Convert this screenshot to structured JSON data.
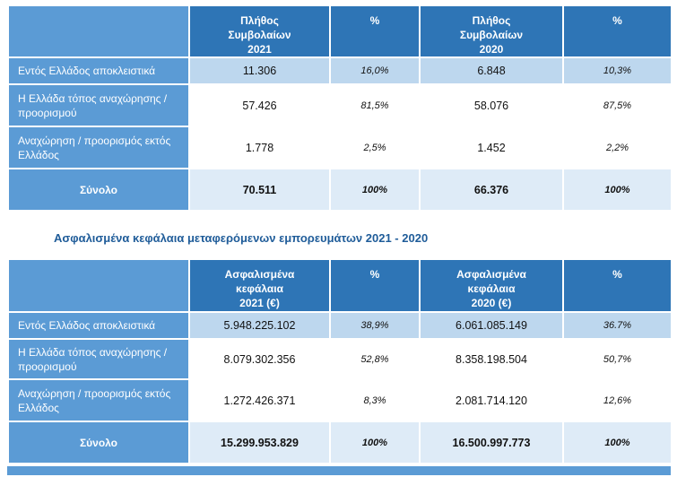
{
  "colors": {
    "header_bg": "#2E75B6",
    "label_bg": "#5B9BD5",
    "band_bg": "#BDD7EE",
    "total_data_bg": "#DEEBF7",
    "title_color": "#1F5C99"
  },
  "section_title": "Ασφαλισμένα κεφάλαια μεταφερόμενων εμπορευμάτων 2021 - 2020",
  "table1": {
    "header": {
      "col_2021_lines": [
        "Πλήθος",
        "Συμβολαίων",
        "2021"
      ],
      "pct_1": "%",
      "col_2020_lines": [
        "Πλήθος",
        "Συμβολαίων",
        "2020"
      ],
      "pct_2": "%"
    },
    "rows": [
      {
        "label": "Εντός Ελλάδος αποκλειστικά",
        "v2021": "11.306",
        "p2021": "16,0%",
        "v2020": "6.848",
        "p2020": "10,3%"
      },
      {
        "label": "Η Ελλάδα τόπος αναχώρησης / προορισμού",
        "v2021": "57.426",
        "p2021": "81,5%",
        "v2020": "58.076",
        "p2020": "87,5%"
      },
      {
        "label": "Αναχώρηση / προορισμός εκτός Ελλάδος",
        "v2021": "1.778",
        "p2021": "2,5%",
        "v2020": "1.452",
        "p2020": "2,2%"
      }
    ],
    "total": {
      "label": "Σύνολο",
      "v2021": "70.511",
      "p2021": "100%",
      "v2020": "66.376",
      "p2020": "100%"
    }
  },
  "table2": {
    "header": {
      "col_2021_lines": [
        "Ασφαλισμένα",
        "κεφάλαια",
        "2021 (€)"
      ],
      "pct_1": "%",
      "col_2020_lines": [
        "Ασφαλισμένα",
        "κεφάλαια",
        "2020 (€)"
      ],
      "pct_2": "%"
    },
    "rows": [
      {
        "label": "Εντός Ελλάδος αποκλειστικά",
        "v2021": "5.948.225.102",
        "p2021": "38,9%",
        "v2020": "6.061.085.149",
        "p2020": "36.7%"
      },
      {
        "label": "Η Ελλάδα τόπος αναχώρησης / προορισμού",
        "v2021": "8.079.302.356",
        "p2021": "52,8%",
        "v2020": "8.358.198.504",
        "p2020": "50,7%"
      },
      {
        "label": "Αναχώρηση / προορισμός εκτός Ελλάδος",
        "v2021": "1.272.426.371",
        "p2021": "8,3%",
        "v2020": "2.081.714.120",
        "p2020": "12,6%"
      }
    ],
    "total": {
      "label": "Σύνολο",
      "v2021": "15.299.953.829",
      "p2021": "100%",
      "v2020": "16.500.997.773",
      "p2020": "100%"
    }
  }
}
